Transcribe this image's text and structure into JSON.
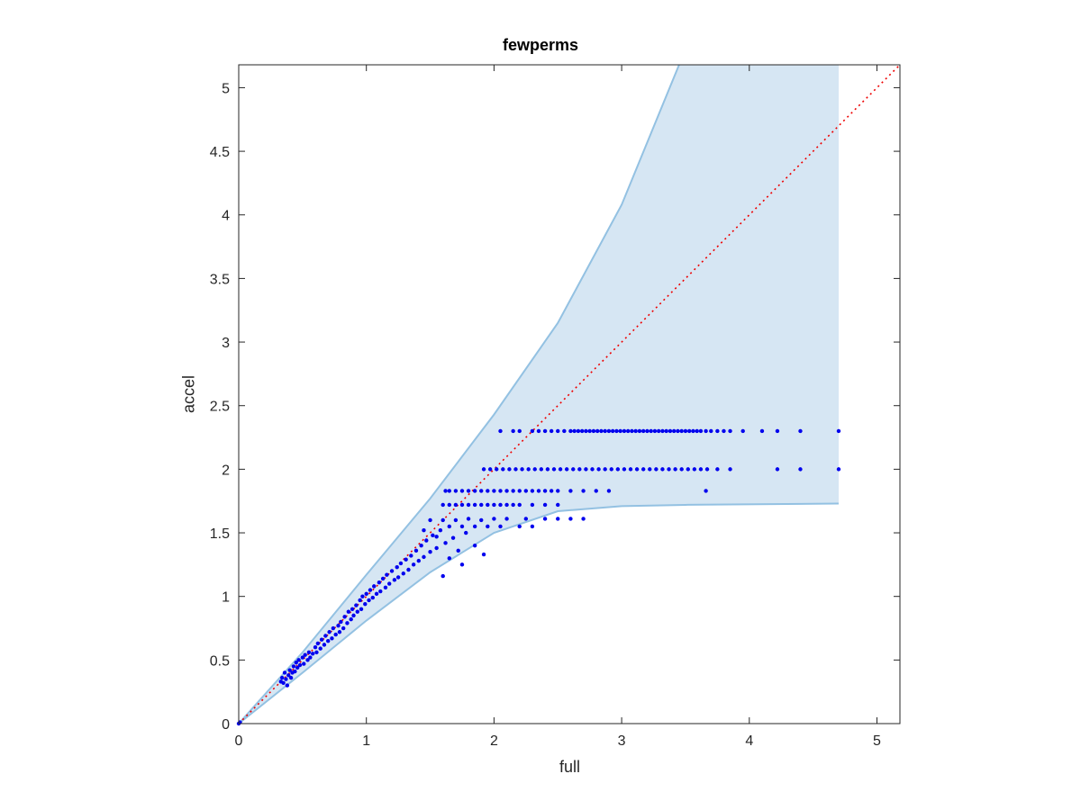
{
  "chart_data": {
    "type": "scatter",
    "title": "fewperms",
    "xlabel": "full",
    "ylabel": "accel",
    "xlim": [
      0,
      5.18
    ],
    "ylim": [
      0,
      5.18
    ],
    "xticks": [
      0,
      1,
      2,
      3,
      4,
      5
    ],
    "yticks": [
      0,
      0.5,
      1,
      1.5,
      2,
      2.5,
      3,
      3.5,
      4,
      4.5,
      5
    ],
    "xtick_labels": [
      "0",
      "1",
      "2",
      "3",
      "4",
      "5"
    ],
    "ytick_labels": [
      "0",
      "0.5",
      "1",
      "1.5",
      "2",
      "2.5",
      "3",
      "3.5",
      "4",
      "4.5",
      "5"
    ],
    "grid": false,
    "colors": {
      "points": "#0000ee",
      "band_fill": "#d6e6f3",
      "band_edge": "#93c1e2",
      "reference": "#ee0000"
    },
    "reference_line": {
      "label": "",
      "from": [
        0,
        0
      ],
      "to": [
        5.18,
        5.18
      ],
      "style": "dotted"
    },
    "band": {
      "upper": [
        [
          0,
          0
        ],
        [
          0.5,
          0.56
        ],
        [
          1,
          1.17
        ],
        [
          1.5,
          1.77
        ],
        [
          2,
          2.43
        ],
        [
          2.5,
          3.15
        ],
        [
          3,
          4.08
        ],
        [
          3.45,
          5.18
        ]
      ],
      "lower": [
        [
          0,
          0
        ],
        [
          0.5,
          0.4
        ],
        [
          1,
          0.81
        ],
        [
          1.5,
          1.19
        ],
        [
          2,
          1.5
        ],
        [
          2.5,
          1.67
        ],
        [
          3,
          1.71
        ],
        [
          3.5,
          1.72
        ],
        [
          4.7,
          1.73
        ]
      ],
      "x_end": 4.7
    },
    "series": [
      {
        "marker": "dot",
        "points": [
          [
            0.33,
            0.33
          ],
          [
            0.34,
            0.36
          ],
          [
            0.35,
            0.32
          ],
          [
            0.36,
            0.4
          ],
          [
            0.37,
            0.35
          ],
          [
            0.38,
            0.3
          ],
          [
            0.39,
            0.38
          ],
          [
            0.4,
            0.42
          ],
          [
            0.41,
            0.36
          ],
          [
            0.42,
            0.4
          ],
          [
            0.43,
            0.45
          ],
          [
            0.44,
            0.41
          ],
          [
            0.45,
            0.48
          ],
          [
            0.46,
            0.44
          ],
          [
            0.47,
            0.5
          ],
          [
            0.48,
            0.46
          ],
          [
            0.5,
            0.52
          ],
          [
            0.51,
            0.47
          ],
          [
            0.52,
            0.54
          ],
          [
            0.54,
            0.5
          ],
          [
            0.55,
            0.56
          ],
          [
            0.56,
            0.52
          ],
          [
            0.58,
            0.55
          ],
          [
            0.6,
            0.6
          ],
          [
            0.61,
            0.56
          ],
          [
            0.62,
            0.63
          ],
          [
            0.64,
            0.59
          ],
          [
            0.65,
            0.66
          ],
          [
            0.67,
            0.62
          ],
          [
            0.68,
            0.69
          ],
          [
            0.7,
            0.65
          ],
          [
            0.71,
            0.72
          ],
          [
            0.73,
            0.67
          ],
          [
            0.74,
            0.75
          ],
          [
            0.76,
            0.7
          ],
          [
            0.78,
            0.77
          ],
          [
            0.79,
            0.72
          ],
          [
            0.8,
            0.8
          ],
          [
            0.82,
            0.75
          ],
          [
            0.83,
            0.84
          ],
          [
            0.85,
            0.79
          ],
          [
            0.86,
            0.88
          ],
          [
            0.88,
            0.82
          ],
          [
            0.89,
            0.9
          ],
          [
            0.9,
            0.85
          ],
          [
            0.92,
            0.93
          ],
          [
            0.93,
            0.88
          ],
          [
            0.95,
            0.97
          ],
          [
            0.96,
            0.9
          ],
          [
            0.97,
            1.0
          ],
          [
            0.99,
            0.94
          ],
          [
            1.0,
            1.02
          ],
          [
            1.02,
            0.97
          ],
          [
            1.03,
            1.05
          ],
          [
            1.05,
            0.99
          ],
          [
            1.06,
            1.08
          ],
          [
            1.08,
            1.02
          ],
          [
            1.1,
            1.11
          ],
          [
            1.11,
            1.04
          ],
          [
            1.13,
            1.14
          ],
          [
            1.15,
            1.07
          ],
          [
            1.16,
            1.17
          ],
          [
            1.18,
            1.1
          ],
          [
            1.2,
            1.2
          ],
          [
            1.22,
            1.13
          ],
          [
            1.24,
            1.23
          ],
          [
            1.25,
            1.15
          ],
          [
            1.27,
            1.26
          ],
          [
            1.29,
            1.18
          ],
          [
            1.31,
            1.29
          ],
          [
            1.33,
            1.21
          ],
          [
            1.35,
            1.32
          ],
          [
            1.37,
            1.25
          ],
          [
            1.39,
            1.36
          ],
          [
            1.41,
            1.28
          ],
          [
            1.43,
            1.4
          ],
          [
            1.45,
            1.31
          ],
          [
            1.47,
            1.44
          ],
          [
            1.5,
            1.35
          ],
          [
            1.52,
            1.48
          ],
          [
            1.55,
            1.38
          ],
          [
            1.58,
            1.52
          ],
          [
            1.6,
            1.16
          ],
          [
            1.62,
            1.42
          ],
          [
            1.65,
            1.3
          ],
          [
            1.68,
            1.46
          ],
          [
            1.72,
            1.36
          ],
          [
            1.75,
            1.25
          ],
          [
            1.78,
            1.5
          ],
          [
            1.85,
            1.4
          ],
          [
            1.92,
            1.33
          ],
          [
            1.45,
            1.52
          ],
          [
            1.5,
            1.6
          ],
          [
            1.55,
            1.47
          ],
          [
            1.6,
            1.6
          ],
          [
            1.65,
            1.55
          ],
          [
            1.7,
            1.6
          ],
          [
            1.75,
            1.55
          ],
          [
            1.8,
            1.61
          ],
          [
            1.85,
            1.55
          ],
          [
            1.9,
            1.6
          ],
          [
            1.95,
            1.55
          ],
          [
            2.0,
            1.61
          ],
          [
            2.05,
            1.55
          ],
          [
            2.1,
            1.61
          ],
          [
            2.2,
            1.55
          ],
          [
            2.25,
            1.61
          ],
          [
            2.3,
            1.55
          ],
          [
            2.4,
            1.61
          ],
          [
            2.5,
            1.61
          ],
          [
            2.6,
            1.61
          ],
          [
            2.7,
            1.61
          ],
          [
            1.7,
            1.72
          ],
          [
            1.75,
            1.72
          ],
          [
            1.8,
            1.72
          ],
          [
            1.85,
            1.72
          ],
          [
            1.9,
            1.72
          ],
          [
            1.95,
            1.72
          ],
          [
            2.0,
            1.72
          ],
          [
            2.05,
            1.72
          ],
          [
            2.1,
            1.72
          ],
          [
            2.15,
            1.72
          ],
          [
            2.2,
            1.72
          ],
          [
            2.3,
            1.72
          ],
          [
            2.4,
            1.72
          ],
          [
            2.5,
            1.72
          ],
          [
            1.6,
            1.72
          ],
          [
            1.65,
            1.72
          ],
          [
            1.62,
            1.83
          ],
          [
            1.65,
            1.83
          ],
          [
            1.7,
            1.83
          ],
          [
            1.75,
            1.83
          ],
          [
            1.8,
            1.83
          ],
          [
            1.85,
            1.83
          ],
          [
            1.9,
            1.83
          ],
          [
            1.95,
            1.83
          ],
          [
            2.0,
            1.83
          ],
          [
            2.05,
            1.83
          ],
          [
            2.1,
            1.83
          ],
          [
            2.15,
            1.83
          ],
          [
            2.2,
            1.83
          ],
          [
            2.25,
            1.83
          ],
          [
            2.3,
            1.83
          ],
          [
            2.35,
            1.83
          ],
          [
            2.4,
            1.83
          ],
          [
            2.45,
            1.83
          ],
          [
            2.5,
            1.83
          ],
          [
            2.6,
            1.83
          ],
          [
            2.7,
            1.83
          ],
          [
            2.8,
            1.83
          ],
          [
            2.9,
            1.83
          ],
          [
            3.66,
            1.83
          ],
          [
            1.92,
            2.0
          ],
          [
            1.97,
            2.0
          ],
          [
            2.02,
            2.0
          ],
          [
            2.07,
            2.0
          ],
          [
            2.12,
            2.0
          ],
          [
            2.17,
            2.0
          ],
          [
            2.22,
            2.0
          ],
          [
            2.27,
            2.0
          ],
          [
            2.32,
            2.0
          ],
          [
            2.37,
            2.0
          ],
          [
            2.42,
            2.0
          ],
          [
            2.47,
            2.0
          ],
          [
            2.52,
            2.0
          ],
          [
            2.57,
            2.0
          ],
          [
            2.62,
            2.0
          ],
          [
            2.67,
            2.0
          ],
          [
            2.72,
            2.0
          ],
          [
            2.77,
            2.0
          ],
          [
            2.82,
            2.0
          ],
          [
            2.87,
            2.0
          ],
          [
            2.92,
            2.0
          ],
          [
            2.97,
            2.0
          ],
          [
            3.02,
            2.0
          ],
          [
            3.07,
            2.0
          ],
          [
            3.12,
            2.0
          ],
          [
            3.17,
            2.0
          ],
          [
            3.22,
            2.0
          ],
          [
            3.27,
            2.0
          ],
          [
            3.32,
            2.0
          ],
          [
            3.37,
            2.0
          ],
          [
            3.42,
            2.0
          ],
          [
            3.47,
            2.0
          ],
          [
            3.52,
            2.0
          ],
          [
            3.57,
            2.0
          ],
          [
            3.62,
            2.0
          ],
          [
            3.67,
            2.0
          ],
          [
            3.75,
            2.0
          ],
          [
            3.85,
            2.0
          ],
          [
            4.22,
            2.0
          ],
          [
            4.4,
            2.0
          ],
          [
            4.7,
            2.0
          ],
          [
            2.05,
            2.3
          ],
          [
            2.15,
            2.3
          ],
          [
            2.2,
            2.3
          ],
          [
            2.3,
            2.3
          ],
          [
            2.35,
            2.3
          ],
          [
            2.4,
            2.3
          ],
          [
            2.45,
            2.3
          ],
          [
            2.5,
            2.3
          ],
          [
            2.55,
            2.3
          ],
          [
            2.6,
            2.3
          ],
          [
            2.63,
            2.3
          ],
          [
            2.66,
            2.3
          ],
          [
            2.69,
            2.3
          ],
          [
            2.72,
            2.3
          ],
          [
            2.75,
            2.3
          ],
          [
            2.78,
            2.3
          ],
          [
            2.81,
            2.3
          ],
          [
            2.84,
            2.3
          ],
          [
            2.87,
            2.3
          ],
          [
            2.9,
            2.3
          ],
          [
            2.93,
            2.3
          ],
          [
            2.96,
            2.3
          ],
          [
            2.99,
            2.3
          ],
          [
            3.02,
            2.3
          ],
          [
            3.05,
            2.3
          ],
          [
            3.08,
            2.3
          ],
          [
            3.11,
            2.3
          ],
          [
            3.14,
            2.3
          ],
          [
            3.17,
            2.3
          ],
          [
            3.2,
            2.3
          ],
          [
            3.23,
            2.3
          ],
          [
            3.26,
            2.3
          ],
          [
            3.29,
            2.3
          ],
          [
            3.32,
            2.3
          ],
          [
            3.35,
            2.3
          ],
          [
            3.38,
            2.3
          ],
          [
            3.41,
            2.3
          ],
          [
            3.44,
            2.3
          ],
          [
            3.47,
            2.3
          ],
          [
            3.5,
            2.3
          ],
          [
            3.53,
            2.3
          ],
          [
            3.56,
            2.3
          ],
          [
            3.59,
            2.3
          ],
          [
            3.62,
            2.3
          ],
          [
            3.66,
            2.3
          ],
          [
            3.7,
            2.3
          ],
          [
            3.75,
            2.3
          ],
          [
            3.8,
            2.3
          ],
          [
            3.85,
            2.3
          ],
          [
            3.95,
            2.3
          ],
          [
            4.1,
            2.3
          ],
          [
            4.22,
            2.3
          ],
          [
            4.4,
            2.3
          ],
          [
            4.7,
            2.3
          ],
          [
            0,
            0
          ],
          [
            0.01,
            0.01
          ]
        ]
      }
    ]
  }
}
